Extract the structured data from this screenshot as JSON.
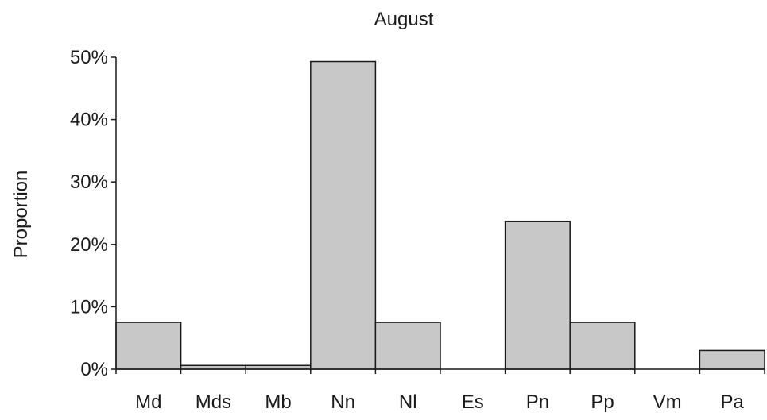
{
  "chart_data": {
    "type": "bar",
    "title": "August",
    "xlabel": "",
    "ylabel": "Proportion",
    "ylim": [
      0,
      50
    ],
    "y_ticks": [
      0,
      10,
      20,
      30,
      40,
      50
    ],
    "y_tick_labels": [
      "0%",
      "10%",
      "20%",
      "30%",
      "40%",
      "50%"
    ],
    "categories": [
      "Md",
      "Mds",
      "Mb",
      "Nn",
      "Nl",
      "Es",
      "Pn",
      "Pp",
      "Vm",
      "Pa"
    ],
    "values": [
      7.5,
      0.6,
      0.6,
      49.3,
      7.5,
      0,
      23.7,
      7.5,
      0,
      3.0
    ],
    "grid": false,
    "legend": "none",
    "colors": {
      "bar_fill": "#c8c8c8",
      "bar_stroke": "#1a1a1a",
      "axis": "#1a1a1a",
      "text": "#1a1a1a"
    }
  }
}
